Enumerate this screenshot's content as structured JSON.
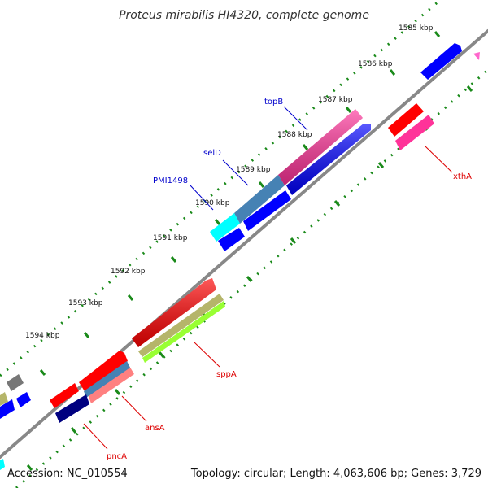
{
  "title": "Proteus mirabilis HI4320, complete genome",
  "footer": {
    "accession": "Accession: NC_010554",
    "summary": "Topology: circular; Length: 4,063,606 bp; Genes: 3,729"
  },
  "ruler": {
    "unit": "kbp",
    "ticks": [
      {
        "kbp": 1585,
        "label": "1585 kbp"
      },
      {
        "kbp": 1586,
        "label": "1586 kbp"
      },
      {
        "kbp": 1587,
        "label": "1587 kbp"
      },
      {
        "kbp": 1588,
        "label": "1588 kbp"
      },
      {
        "kbp": 1589,
        "label": "1589 kbp"
      },
      {
        "kbp": 1590,
        "label": "1590 kbp"
      },
      {
        "kbp": 1591,
        "label": "1591 kbp"
      },
      {
        "kbp": 1592,
        "label": "1592 kbp"
      },
      {
        "kbp": 1593,
        "label": "1593 kbp"
      },
      {
        "kbp": 1594,
        "label": "1594 kbp"
      }
    ]
  },
  "gene_labels": [
    {
      "name": "topB",
      "color": "#0000cc"
    },
    {
      "name": "selD",
      "color": "#0000cc"
    },
    {
      "name": "PMI1498",
      "color": "#0000cc"
    },
    {
      "name": "xthA",
      "color": "#dd0000"
    },
    {
      "name": "sppA",
      "color": "#dd0000"
    },
    {
      "name": "ansA",
      "color": "#dd0000"
    },
    {
      "name": "pncA",
      "color": "#dd0000"
    }
  ],
  "colors": {
    "backbone": "#888888",
    "tick_dots": "#1a8a1a",
    "red": "#ff0000",
    "pink": "#ff3399",
    "blue": "#0000ff",
    "steelblue": "#4682b4",
    "cyan": "#00ffff",
    "navy": "#000080",
    "olive": "#b5b56a",
    "lime": "#99ff33",
    "salmon": "#ff8080",
    "gray": "#777777"
  }
}
